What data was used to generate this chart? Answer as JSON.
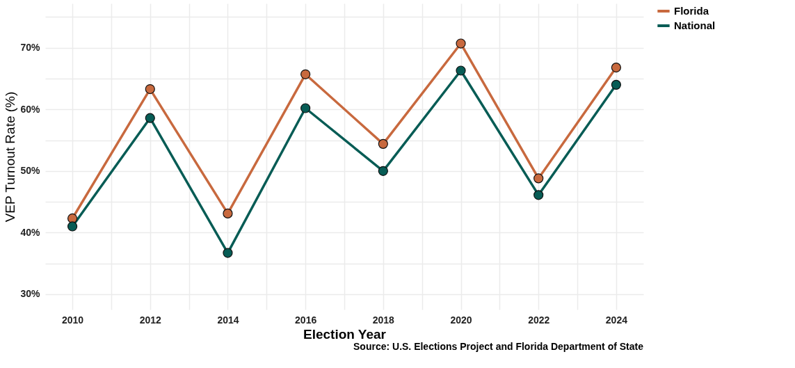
{
  "chart_data": {
    "type": "line",
    "xlabel": "Election Year",
    "ylabel": "VEP Turnout Rate (%)",
    "x": [
      2010,
      2012,
      2014,
      2016,
      2018,
      2020,
      2022,
      2024
    ],
    "series": [
      {
        "name": "Florida",
        "color": "#c8693e",
        "values": [
          42.3,
          63.3,
          43.1,
          65.7,
          54.4,
          70.7,
          48.8,
          66.8
        ]
      },
      {
        "name": "National",
        "color": "#075c55",
        "values": [
          41.0,
          58.6,
          36.7,
          60.2,
          50.0,
          66.3,
          46.1,
          64.0
        ]
      }
    ],
    "xlim": [
      2009.3,
      2024.7
    ],
    "ylim": [
      27.5,
      77.2
    ],
    "xticks": [
      2010,
      {
        "value": 2011,
        "label": null
      },
      2012,
      {
        "value": 2013,
        "label": null
      },
      2014,
      {
        "value": 2015,
        "label": null
      },
      2016,
      {
        "value": 2017,
        "label": null
      },
      2018,
      {
        "value": 2019,
        "label": null
      },
      2020,
      {
        "value": 2021,
        "label": null
      },
      2022,
      {
        "value": 2023,
        "label": null
      },
      2024
    ],
    "yticks": [
      {
        "value": 30,
        "label": "30%"
      },
      {
        "value": 35,
        "label": null
      },
      {
        "value": 40,
        "label": "40%"
      },
      {
        "value": 45,
        "label": null
      },
      {
        "value": 50,
        "label": "50%"
      },
      {
        "value": 55,
        "label": null
      },
      {
        "value": 60,
        "label": "60%"
      },
      {
        "value": 65,
        "label": null
      },
      {
        "value": 70,
        "label": "70%"
      },
      {
        "value": 75,
        "label": null
      }
    ],
    "grid": true,
    "legend": "right",
    "marker": "circle",
    "line_style": "solid",
    "annotations": [
      "Source: U.S. Elections Project and Florida Department of State"
    ]
  }
}
